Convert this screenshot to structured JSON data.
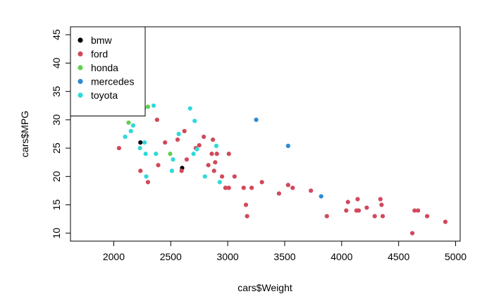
{
  "chart_data": {
    "type": "scatter",
    "title": "",
    "xlabel": "cars$Weight",
    "ylabel": "cars$MPG",
    "xlim": [
      1620,
      5040
    ],
    "ylim": [
      8.6,
      46.4
    ],
    "xticks": [
      2000,
      2500,
      3000,
      3500,
      4000,
      4500,
      5000
    ],
    "yticks": [
      10,
      15,
      20,
      25,
      30,
      35,
      40,
      45
    ],
    "grid": false,
    "legend": {
      "position": "top-left",
      "box": true
    },
    "series": [
      {
        "name": "bmw",
        "color": "#000000",
        "points": [
          [
            2234,
            26
          ],
          [
            2600,
            21.5
          ]
        ]
      },
      {
        "name": "ford",
        "color": "#d1495b",
        "points": [
          [
            2046,
            25
          ],
          [
            2234,
            21
          ],
          [
            2300,
            19
          ],
          [
            2380,
            30
          ],
          [
            2390,
            22
          ],
          [
            2450,
            26
          ],
          [
            2560,
            26.5
          ],
          [
            2595,
            21
          ],
          [
            2620,
            28
          ],
          [
            2640,
            23
          ],
          [
            2720,
            25
          ],
          [
            2750,
            25.5
          ],
          [
            2790,
            27
          ],
          [
            2830,
            22
          ],
          [
            2860,
            24
          ],
          [
            2870,
            26.5
          ],
          [
            2880,
            21
          ],
          [
            2890,
            22.5
          ],
          [
            2905,
            24
          ],
          [
            2950,
            20
          ],
          [
            2980,
            18
          ],
          [
            3010,
            18
          ],
          [
            3010,
            24
          ],
          [
            3060,
            20
          ],
          [
            3140,
            18
          ],
          [
            3160,
            15
          ],
          [
            3170,
            13
          ],
          [
            3210,
            18
          ],
          [
            3300,
            19
          ],
          [
            3450,
            17
          ],
          [
            3530,
            18.5
          ],
          [
            3570,
            18
          ],
          [
            3730,
            17.5
          ],
          [
            3870,
            13
          ],
          [
            4040,
            14
          ],
          [
            4055,
            15.5
          ],
          [
            4130,
            14
          ],
          [
            4140,
            16
          ],
          [
            4150,
            14
          ],
          [
            4220,
            14.5
          ],
          [
            4290,
            13
          ],
          [
            4340,
            16
          ],
          [
            4350,
            15
          ],
          [
            4360,
            13
          ],
          [
            4620,
            10
          ],
          [
            4640,
            14
          ],
          [
            4670,
            14
          ],
          [
            4750,
            13
          ],
          [
            4910,
            12
          ]
        ]
      },
      {
        "name": "honda",
        "color": "#61d04f",
        "points": [
          [
            2045,
            31.5
          ],
          [
            2130,
            29.5
          ],
          [
            2210,
            33.8
          ],
          [
            2218,
            36
          ],
          [
            2300,
            32.3
          ],
          [
            2495,
            24
          ]
        ]
      },
      {
        "name": "mercedes",
        "color": "#2d8ad6",
        "points": [
          [
            3250,
            30
          ],
          [
            3530,
            25.4
          ],
          [
            3820,
            16.5
          ]
        ]
      },
      {
        "name": "toyota",
        "color": "#2fd9d9",
        "points": [
          [
            1650,
            31
          ],
          [
            1773,
            31
          ],
          [
            2100,
            27
          ],
          [
            2150,
            28
          ],
          [
            2170,
            29
          ],
          [
            2230,
            25
          ],
          [
            2245,
            34
          ],
          [
            2265,
            32
          ],
          [
            2270,
            26
          ],
          [
            2280,
            24
          ],
          [
            2285,
            20
          ],
          [
            2350,
            32.5
          ],
          [
            2370,
            24
          ],
          [
            2510,
            21
          ],
          [
            2520,
            23
          ],
          [
            2570,
            27.5
          ],
          [
            2670,
            32
          ],
          [
            2700,
            24
          ],
          [
            2710,
            29.8
          ],
          [
            2730,
            24.8
          ],
          [
            2800,
            20
          ],
          [
            2900,
            25.4
          ],
          [
            2930,
            19
          ]
        ]
      }
    ]
  }
}
